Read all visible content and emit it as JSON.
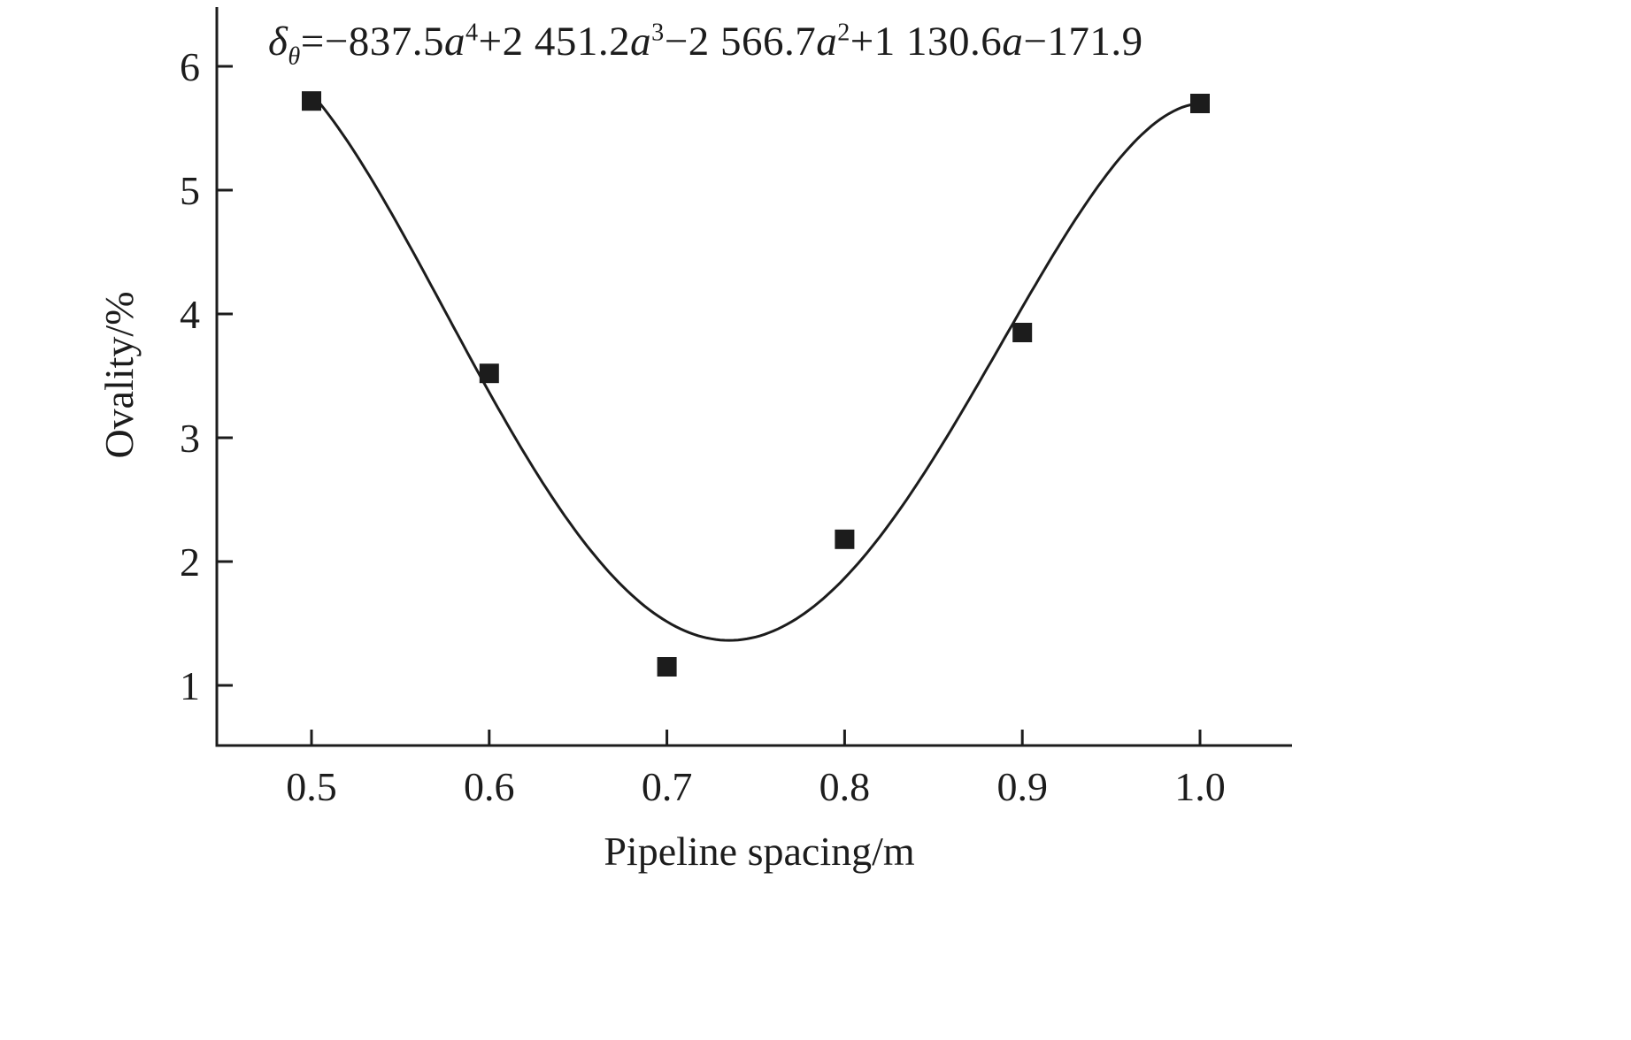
{
  "page": {
    "background": "#ffffff"
  },
  "chart_data": {
    "type": "scatter",
    "title": "",
    "xlabel": "Pipeline spacing/m",
    "ylabel": "Ovality/%",
    "grid": false,
    "legend": "none",
    "xlim": [
      0.447,
      1.052
    ],
    "ylim": [
      0.51,
      6.48
    ],
    "xticks": [
      "0.5",
      "0.6",
      "0.7",
      "0.8",
      "0.9",
      "1.0"
    ],
    "xtick_values": [
      0.5,
      0.6,
      0.7,
      0.8,
      0.9,
      1.0
    ],
    "yticks": [
      "1",
      "2",
      "3",
      "4",
      "5",
      "6"
    ],
    "ytick_values": [
      1,
      2,
      3,
      4,
      5,
      6
    ],
    "marker": "filled-square",
    "points": [
      {
        "x": 0.5,
        "y": 5.72
      },
      {
        "x": 0.6,
        "y": 3.52
      },
      {
        "x": 0.7,
        "y": 1.15
      },
      {
        "x": 0.8,
        "y": 2.18
      },
      {
        "x": 0.9,
        "y": 3.85
      },
      {
        "x": 1.0,
        "y": 5.7
      }
    ],
    "fit_curve": {
      "type": "polynomial",
      "variable": "a",
      "coefficients": [
        -837.5,
        2451.2,
        -2566.7,
        1130.6,
        -171.9
      ],
      "domain": [
        0.5,
        1.0
      ]
    },
    "equation_plain": "δθ=−837.5a⁴+2 451.2a³−2 566.7a²+1 130.6a−171.9",
    "equation_segments": [
      {
        "kind": "var",
        "text": "δ"
      },
      {
        "kind": "sub",
        "text": "θ"
      },
      {
        "kind": "text",
        "text": "=−837.5"
      },
      {
        "kind": "var",
        "text": "a"
      },
      {
        "kind": "sup",
        "text": "4"
      },
      {
        "kind": "text",
        "text": "+2 451.2"
      },
      {
        "kind": "var",
        "text": "a"
      },
      {
        "kind": "sup",
        "text": "3"
      },
      {
        "kind": "text",
        "text": "−2 566.7"
      },
      {
        "kind": "var",
        "text": "a"
      },
      {
        "kind": "sup",
        "text": "2"
      },
      {
        "kind": "text",
        "text": "+1 130.6"
      },
      {
        "kind": "var",
        "text": "a"
      },
      {
        "kind": "text",
        "text": "−171.9"
      }
    ],
    "colors": {
      "axis": "#1c1c1c",
      "curve": "#1c1c1c",
      "marker": "#1c1c1c",
      "text": "#1c1c1c"
    }
  }
}
